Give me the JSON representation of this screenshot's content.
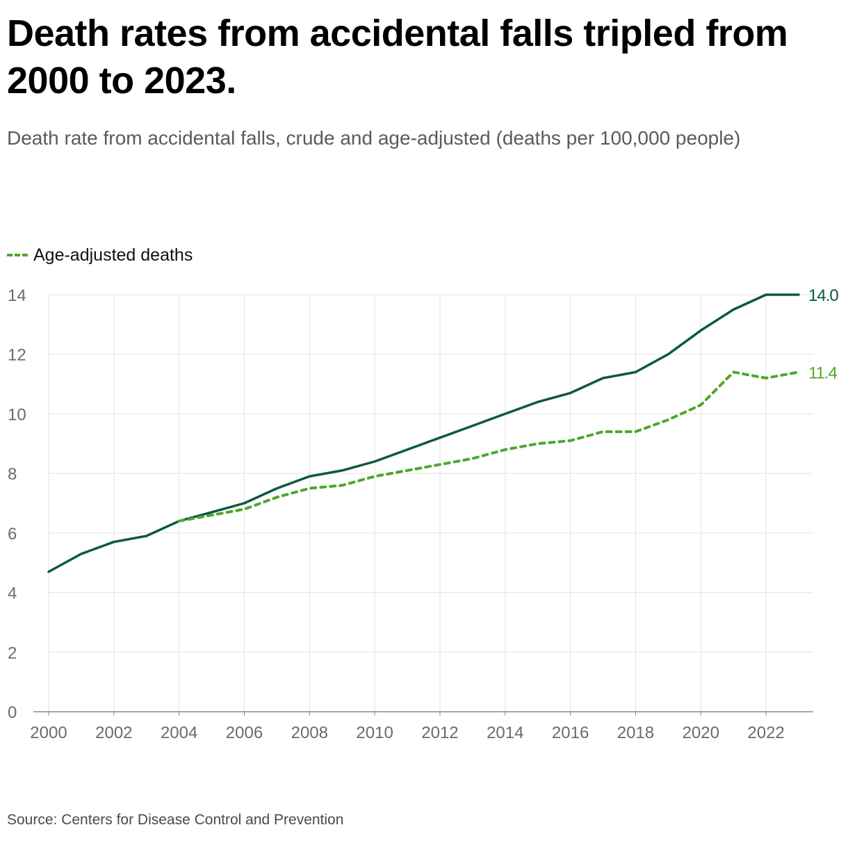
{
  "title": "Death rates from accidental falls tripled from 2000 to 2023.",
  "subtitle": "Death rate from accidental falls, crude and age-adjusted (deaths per 100,000 people)",
  "source": "Source: Centers for Disease Control and Prevention",
  "legend": {
    "label": "Age-adjusted deaths"
  },
  "colors": {
    "crude": "#0b5a3f",
    "age_adjusted": "#4ea72e",
    "grid": "#e3e3e3",
    "axis": "#888888",
    "tick": "#6b6b6b"
  },
  "chart_data": {
    "type": "line",
    "x": [
      2000,
      2001,
      2002,
      2003,
      2004,
      2005,
      2006,
      2007,
      2008,
      2009,
      2010,
      2011,
      2012,
      2013,
      2014,
      2015,
      2016,
      2017,
      2018,
      2019,
      2020,
      2021,
      2022,
      2023
    ],
    "series": [
      {
        "key": "crude",
        "style": "solid",
        "end_label": "14.0",
        "values": [
          4.7,
          5.3,
          5.7,
          5.9,
          6.4,
          6.7,
          7.0,
          7.5,
          7.9,
          8.1,
          8.4,
          8.8,
          9.2,
          9.6,
          10.0,
          10.4,
          10.7,
          11.2,
          11.4,
          12.0,
          12.8,
          13.5,
          14.0,
          14.0
        ]
      },
      {
        "key": "age_adjusted",
        "name": "Age-adjusted deaths",
        "style": "dashed",
        "end_label": "11.4",
        "values": [
          null,
          null,
          null,
          null,
          6.4,
          6.6,
          6.8,
          7.2,
          7.5,
          7.6,
          7.9,
          8.1,
          8.3,
          8.5,
          8.8,
          9.0,
          9.1,
          9.4,
          9.4,
          9.8,
          10.3,
          11.4,
          11.2,
          11.4
        ]
      }
    ],
    "xlim": [
      2000,
      2023
    ],
    "ylim": [
      0,
      14
    ],
    "yticks": [
      "0",
      "2",
      "4",
      "6",
      "8",
      "10",
      "12",
      "14"
    ],
    "xticks": [
      "2000",
      "2002",
      "2004",
      "2006",
      "2008",
      "2010",
      "2012",
      "2014",
      "2016",
      "2018",
      "2020",
      "2022"
    ],
    "grid": true,
    "legend_position": "top-left"
  }
}
